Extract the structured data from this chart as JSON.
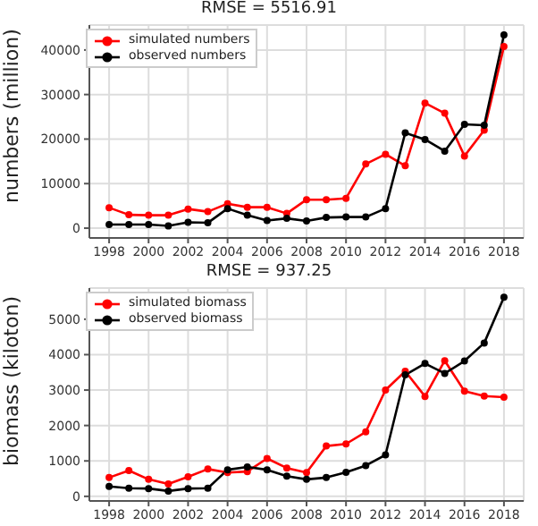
{
  "chart_data": [
    {
      "type": "line",
      "title": "RMSE = 5516.91",
      "ylabel": "numbers (million)",
      "x": [
        1998,
        1999,
        2000,
        2001,
        2002,
        2003,
        2004,
        2005,
        2006,
        2007,
        2008,
        2009,
        2010,
        2011,
        2012,
        2013,
        2014,
        2015,
        2016,
        2017,
        2018
      ],
      "series": [
        {
          "name": "simulated numbers",
          "color": "#ff0000",
          "values": [
            4600,
            3000,
            2900,
            2900,
            4300,
            3700,
            5500,
            4700,
            4700,
            3300,
            6400,
            6400,
            6700,
            14400,
            16600,
            14000,
            28100,
            25800,
            16200,
            22000,
            40800
          ]
        },
        {
          "name": "observed numbers",
          "color": "#000000",
          "values": [
            800,
            800,
            800,
            500,
            1300,
            1200,
            4400,
            2900,
            1700,
            2200,
            1600,
            2400,
            2500,
            2500,
            4400,
            21400,
            19900,
            17300,
            23300,
            23100,
            43400
          ]
        }
      ],
      "xlim": [
        1997,
        2019
      ],
      "xticks": [
        1998,
        2000,
        2002,
        2004,
        2006,
        2008,
        2010,
        2012,
        2014,
        2016,
        2018
      ],
      "ylim": [
        -2200,
        45600
      ],
      "yticks": [
        0,
        10000,
        20000,
        30000,
        40000
      ],
      "grid": true,
      "legend": "top left",
      "marker": "circle"
    },
    {
      "type": "line",
      "title": "RMSE = 937.25",
      "ylabel": "biomass (kiloton)",
      "x": [
        1998,
        1999,
        2000,
        2001,
        2002,
        2003,
        2004,
        2005,
        2006,
        2007,
        2008,
        2009,
        2010,
        2011,
        2012,
        2013,
        2014,
        2015,
        2016,
        2017,
        2018
      ],
      "series": [
        {
          "name": "simulated biomass",
          "color": "#ff0000",
          "values": [
            530,
            730,
            480,
            350,
            550,
            770,
            670,
            700,
            1070,
            800,
            670,
            1420,
            1480,
            1820,
            3000,
            3530,
            2820,
            3830,
            2970,
            2830,
            2800
          ]
        },
        {
          "name": "observed biomass",
          "color": "#000000",
          "values": [
            280,
            230,
            220,
            150,
            220,
            230,
            750,
            830,
            750,
            570,
            480,
            530,
            680,
            870,
            1170,
            3430,
            3750,
            3470,
            3820,
            4330,
            5620
          ]
        }
      ],
      "xlim": [
        1997,
        2019
      ],
      "xticks": [
        1998,
        2000,
        2002,
        2004,
        2006,
        2008,
        2010,
        2012,
        2014,
        2016,
        2018
      ],
      "ylim": [
        -130,
        5880
      ],
      "yticks": [
        0,
        1000,
        2000,
        3000,
        4000,
        5000
      ],
      "grid": true,
      "legend": "top left",
      "marker": "circle"
    }
  ]
}
